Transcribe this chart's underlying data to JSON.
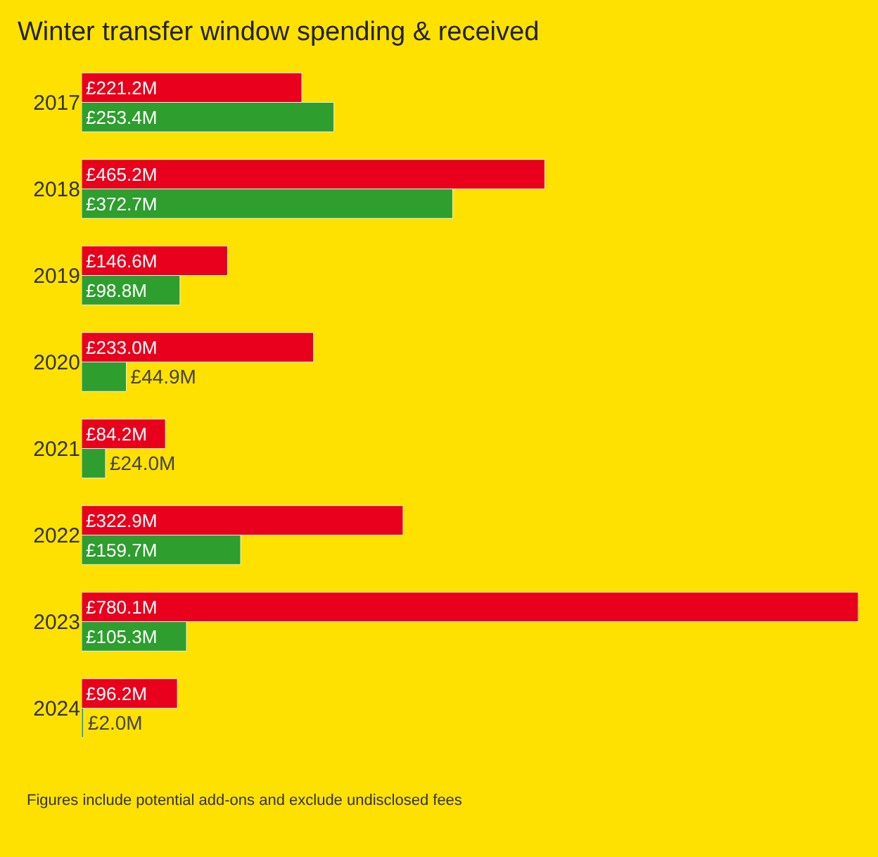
{
  "chart_data": {
    "type": "bar",
    "orientation": "horizontal",
    "title": "Winter transfer window spending & received",
    "categories": [
      "2017",
      "2018",
      "2019",
      "2020",
      "2021",
      "2022",
      "2023",
      "2024"
    ],
    "series": [
      {
        "color": "#e8001c",
        "values": [
          221.2,
          465.2,
          146.6,
          233.0,
          84.2,
          322.9,
          780.1,
          96.2
        ],
        "value_labels": [
          "£221.2M",
          "£465.2M",
          "£146.6M",
          "£233.0M",
          "£84.2M",
          "£322.9M",
          "£780.1M",
          "£96.2M"
        ]
      },
      {
        "color": "#2e9e2e",
        "values": [
          253.4,
          372.7,
          98.8,
          44.9,
          24.0,
          159.7,
          105.3,
          2.0
        ],
        "value_labels": [
          "£253.4M",
          "£372.7M",
          "£98.8M",
          "£44.9M",
          "£24.0M",
          "£159.7M",
          "£105.3M",
          "£2.0M"
        ]
      }
    ],
    "xlim": [
      0,
      780.1
    ],
    "tick_labels": "y",
    "annotations": [
      "Figures include potential add-ons and exclude undisclosed fees"
    ]
  }
}
